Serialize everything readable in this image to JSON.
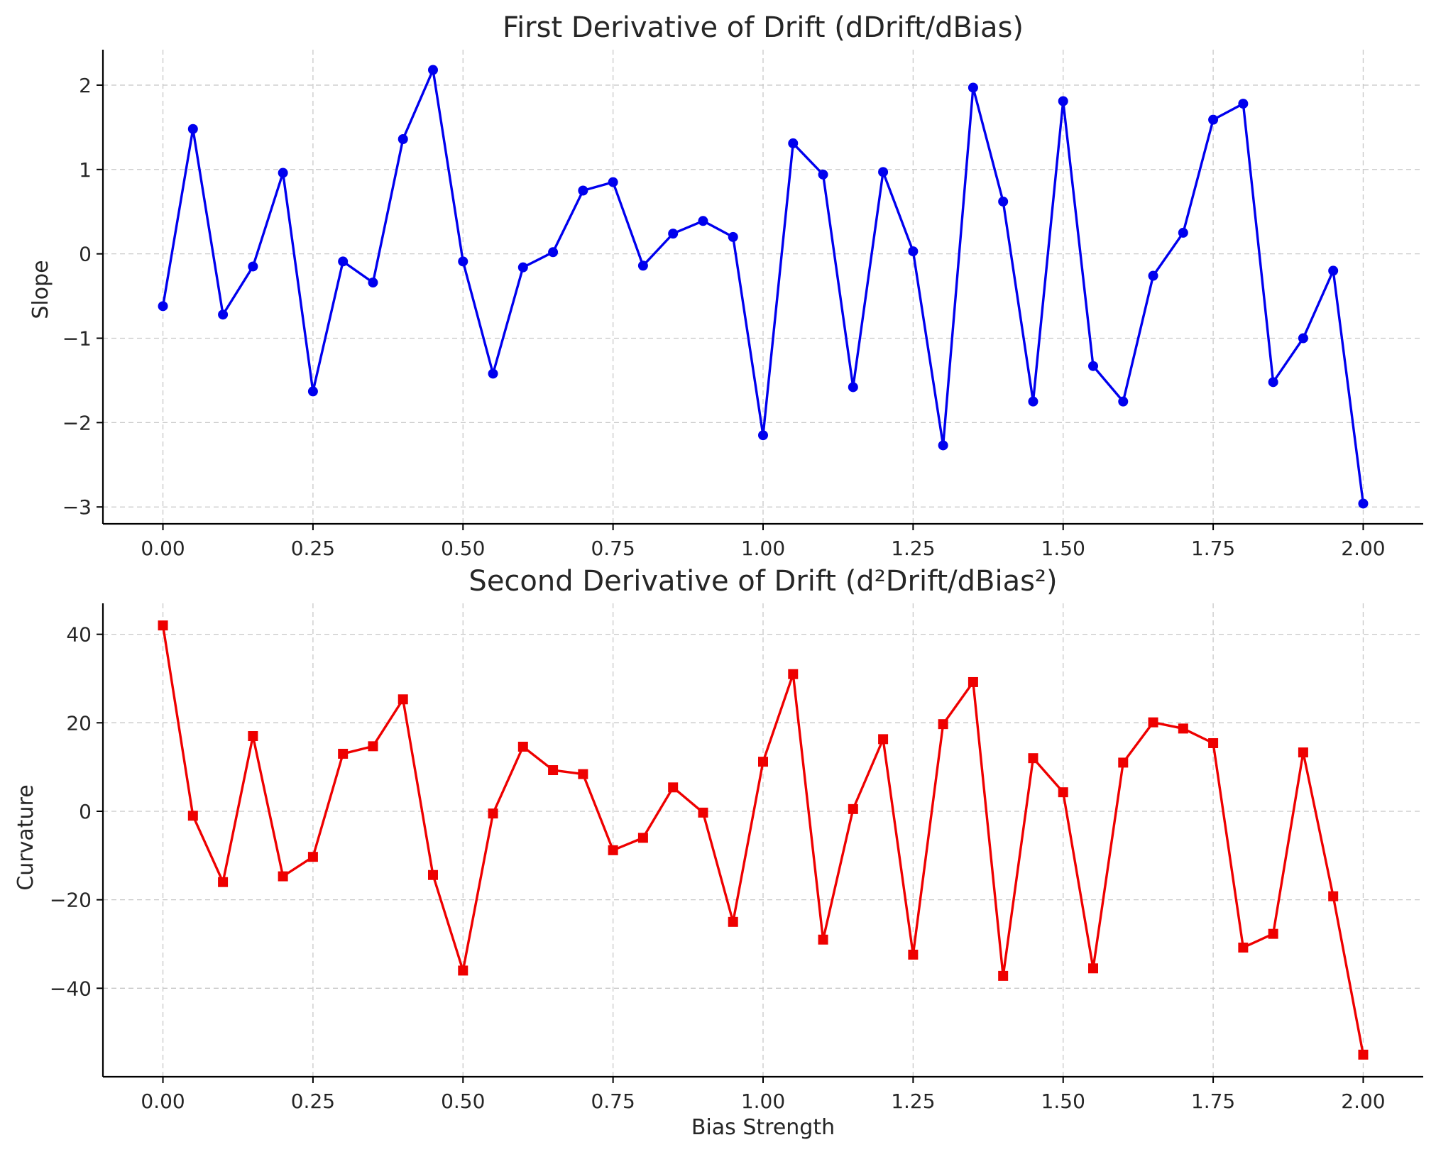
{
  "chart_data": [
    {
      "type": "line",
      "title": "First Derivative of Drift (dDrift/dBias)",
      "xlabel": "",
      "ylabel": "Slope",
      "x": [
        0.0,
        0.05,
        0.1,
        0.15,
        0.2,
        0.25,
        0.3,
        0.35,
        0.4,
        0.45,
        0.5,
        0.55,
        0.6,
        0.65,
        0.7,
        0.75,
        0.8,
        0.85,
        0.9,
        0.95,
        1.0,
        1.05,
        1.1,
        1.15,
        1.2,
        1.25,
        1.3,
        1.35,
        1.4,
        1.45,
        1.5,
        1.55,
        1.6,
        1.65,
        1.7,
        1.75,
        1.8,
        1.85,
        1.9,
        1.95,
        2.0
      ],
      "series": [
        {
          "marker": "circle",
          "color": "#0000ee",
          "values": [
            -0.62,
            1.48,
            -0.72,
            -0.15,
            0.96,
            -1.63,
            -0.09,
            -0.34,
            1.36,
            2.18,
            -0.09,
            -1.42,
            -0.16,
            0.02,
            0.75,
            0.85,
            -0.14,
            0.24,
            0.39,
            0.2,
            -2.15,
            1.31,
            0.94,
            -1.58,
            0.97,
            0.03,
            -2.27,
            1.97,
            0.62,
            -1.75,
            1.81,
            -1.33,
            -1.75,
            -0.26,
            0.25,
            1.59,
            1.78,
            -1.52,
            -1.0,
            -0.2,
            -2.96
          ]
        }
      ],
      "xlim": [
        -0.1,
        2.1
      ],
      "ylim": [
        -3.2,
        2.42
      ],
      "xticks": [
        0.0,
        0.25,
        0.5,
        0.75,
        1.0,
        1.25,
        1.5,
        1.75,
        2.0
      ],
      "xtick_labels": [
        "0.00",
        "0.25",
        "0.50",
        "0.75",
        "1.00",
        "1.25",
        "1.50",
        "1.75",
        "2.00"
      ],
      "yticks": [
        2,
        1,
        0,
        -1,
        -2,
        -3
      ],
      "ytick_labels": [
        "2",
        "1",
        "0",
        "−1",
        "−2",
        "−3"
      ],
      "grid": true
    },
    {
      "type": "line",
      "title": "Second Derivative of Drift (d²Drift/dBias²)",
      "xlabel": "Bias Strength",
      "ylabel": "Curvature",
      "x": [
        0.0,
        0.05,
        0.1,
        0.15,
        0.2,
        0.25,
        0.3,
        0.35,
        0.4,
        0.45,
        0.5,
        0.55,
        0.6,
        0.65,
        0.7,
        0.75,
        0.8,
        0.85,
        0.9,
        0.95,
        1.0,
        1.05,
        1.1,
        1.15,
        1.2,
        1.25,
        1.3,
        1.35,
        1.4,
        1.45,
        1.5,
        1.55,
        1.6,
        1.65,
        1.7,
        1.75,
        1.8,
        1.85,
        1.9,
        1.95,
        2.0
      ],
      "series": [
        {
          "marker": "square",
          "color": "#ee0000",
          "values": [
            42.0,
            -1.0,
            -16.0,
            17.0,
            -14.7,
            -10.3,
            13.0,
            14.7,
            25.3,
            -14.4,
            -36.0,
            -0.5,
            14.6,
            9.3,
            8.4,
            -8.8,
            -6.0,
            5.4,
            -0.3,
            -25.0,
            11.2,
            31.0,
            -29.0,
            0.5,
            16.3,
            -32.4,
            19.7,
            29.2,
            -37.2,
            12.0,
            4.3,
            -35.5,
            11.0,
            20.1,
            18.7,
            15.4,
            -30.8,
            -27.7,
            13.3,
            -19.2,
            -55.0
          ]
        }
      ],
      "xlim": [
        -0.1,
        2.1
      ],
      "ylim": [
        -60.0,
        47.0
      ],
      "xticks": [
        0.0,
        0.25,
        0.5,
        0.75,
        1.0,
        1.25,
        1.5,
        1.75,
        2.0
      ],
      "xtick_labels": [
        "0.00",
        "0.25",
        "0.50",
        "0.75",
        "1.00",
        "1.25",
        "1.50",
        "1.75",
        "2.00"
      ],
      "yticks": [
        40,
        20,
        0,
        -20,
        -40
      ],
      "ytick_labels": [
        "40",
        "20",
        "0",
        "−20",
        "−40"
      ],
      "grid": true
    }
  ]
}
